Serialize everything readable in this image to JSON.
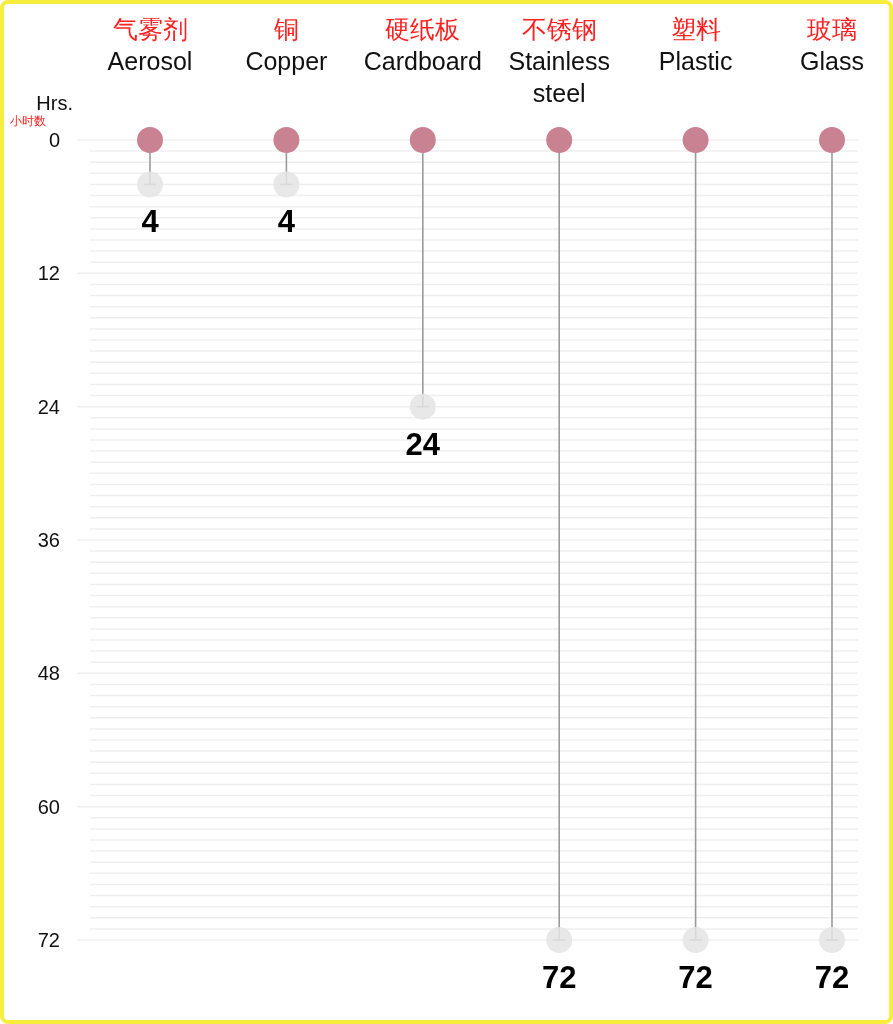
{
  "chart_data": {
    "type": "lollipop",
    "categories": [
      "气雾剂\nAerosol",
      "铜\nCopper",
      "硬纸板\nCardboard",
      "不锈钢\nStainless\nsteel",
      "塑料\nPlastic",
      "玻璃\nGlass"
    ],
    "ylabel": "Hrs.\n小时数",
    "series": [
      {
        "type": "scatter",
        "color": "#c98292",
        "values": [
          0,
          0,
          0,
          0,
          0,
          0
        ]
      },
      {
        "type": "lollipop",
        "color": "#e4e4e4",
        "values": [
          4,
          4,
          24,
          72,
          72,
          72
        ],
        "value_labels": [
          "4",
          "4",
          "24",
          "72",
          "72",
          "72"
        ]
      }
    ],
    "ylim": [
      72,
      0
    ],
    "yticks": [
      0,
      {
        "value": 1,
        "label": null
      },
      {
        "value": 2,
        "label": null
      },
      {
        "value": 3,
        "label": null
      },
      {
        "value": 4,
        "label": null
      },
      {
        "value": 5,
        "label": null
      },
      {
        "value": 6,
        "label": null
      },
      {
        "value": 7,
        "label": null
      },
      {
        "value": 8,
        "label": null
      },
      {
        "value": 9,
        "label": null
      },
      {
        "value": 10,
        "label": null
      },
      {
        "value": 11,
        "label": null
      },
      12,
      {
        "value": 13,
        "label": null
      },
      {
        "value": 14,
        "label": null
      },
      {
        "value": 15,
        "label": null
      },
      {
        "value": 16,
        "label": null
      },
      {
        "value": 17,
        "label": null
      },
      {
        "value": 18,
        "label": null
      },
      {
        "value": 19,
        "label": null
      },
      {
        "value": 20,
        "label": null
      },
      {
        "value": 21,
        "label": null
      },
      {
        "value": 22,
        "label": null
      },
      {
        "value": 23,
        "label": null
      },
      24,
      {
        "value": 25,
        "label": null
      },
      {
        "value": 26,
        "label": null
      },
      {
        "value": 27,
        "label": null
      },
      {
        "value": 28,
        "label": null
      },
      {
        "value": 29,
        "label": null
      },
      {
        "value": 30,
        "label": null
      },
      {
        "value": 31,
        "label": null
      },
      {
        "value": 32,
        "label": null
      },
      {
        "value": 33,
        "label": null
      },
      {
        "value": 34,
        "label": null
      },
      {
        "value": 35,
        "label": null
      },
      36,
      {
        "value": 37,
        "label": null
      },
      {
        "value": 38,
        "label": null
      },
      {
        "value": 39,
        "label": null
      },
      {
        "value": 40,
        "label": null
      },
      {
        "value": 41,
        "label": null
      },
      {
        "value": 42,
        "label": null
      },
      {
        "value": 43,
        "label": null
      },
      {
        "value": 44,
        "label": null
      },
      {
        "value": 45,
        "label": null
      },
      {
        "value": 46,
        "label": null
      },
      {
        "value": 47,
        "label": null
      },
      48,
      {
        "value": 49,
        "label": null
      },
      {
        "value": 50,
        "label": null
      },
      {
        "value": 51,
        "label": null
      },
      {
        "value": 52,
        "label": null
      },
      {
        "value": 53,
        "label": null
      },
      {
        "value": 54,
        "label": null
      },
      {
        "value": 55,
        "label": null
      },
      {
        "value": 56,
        "label": null
      },
      {
        "value": 57,
        "label": null
      },
      {
        "value": 58,
        "label": null
      },
      {
        "value": 59,
        "label": null
      },
      60,
      {
        "value": 61,
        "label": null
      },
      {
        "value": 62,
        "label": null
      },
      {
        "value": 63,
        "label": null
      },
      {
        "value": 64,
        "label": null
      },
      {
        "value": 65,
        "label": null
      },
      {
        "value": 66,
        "label": null
      },
      {
        "value": 67,
        "label": null
      },
      {
        "value": 68,
        "label": null
      },
      {
        "value": 69,
        "label": null
      },
      {
        "value": 70,
        "label": null
      },
      {
        "value": 71,
        "label": null
      },
      72
    ],
    "grid": "y",
    "marker": "circle"
  }
}
